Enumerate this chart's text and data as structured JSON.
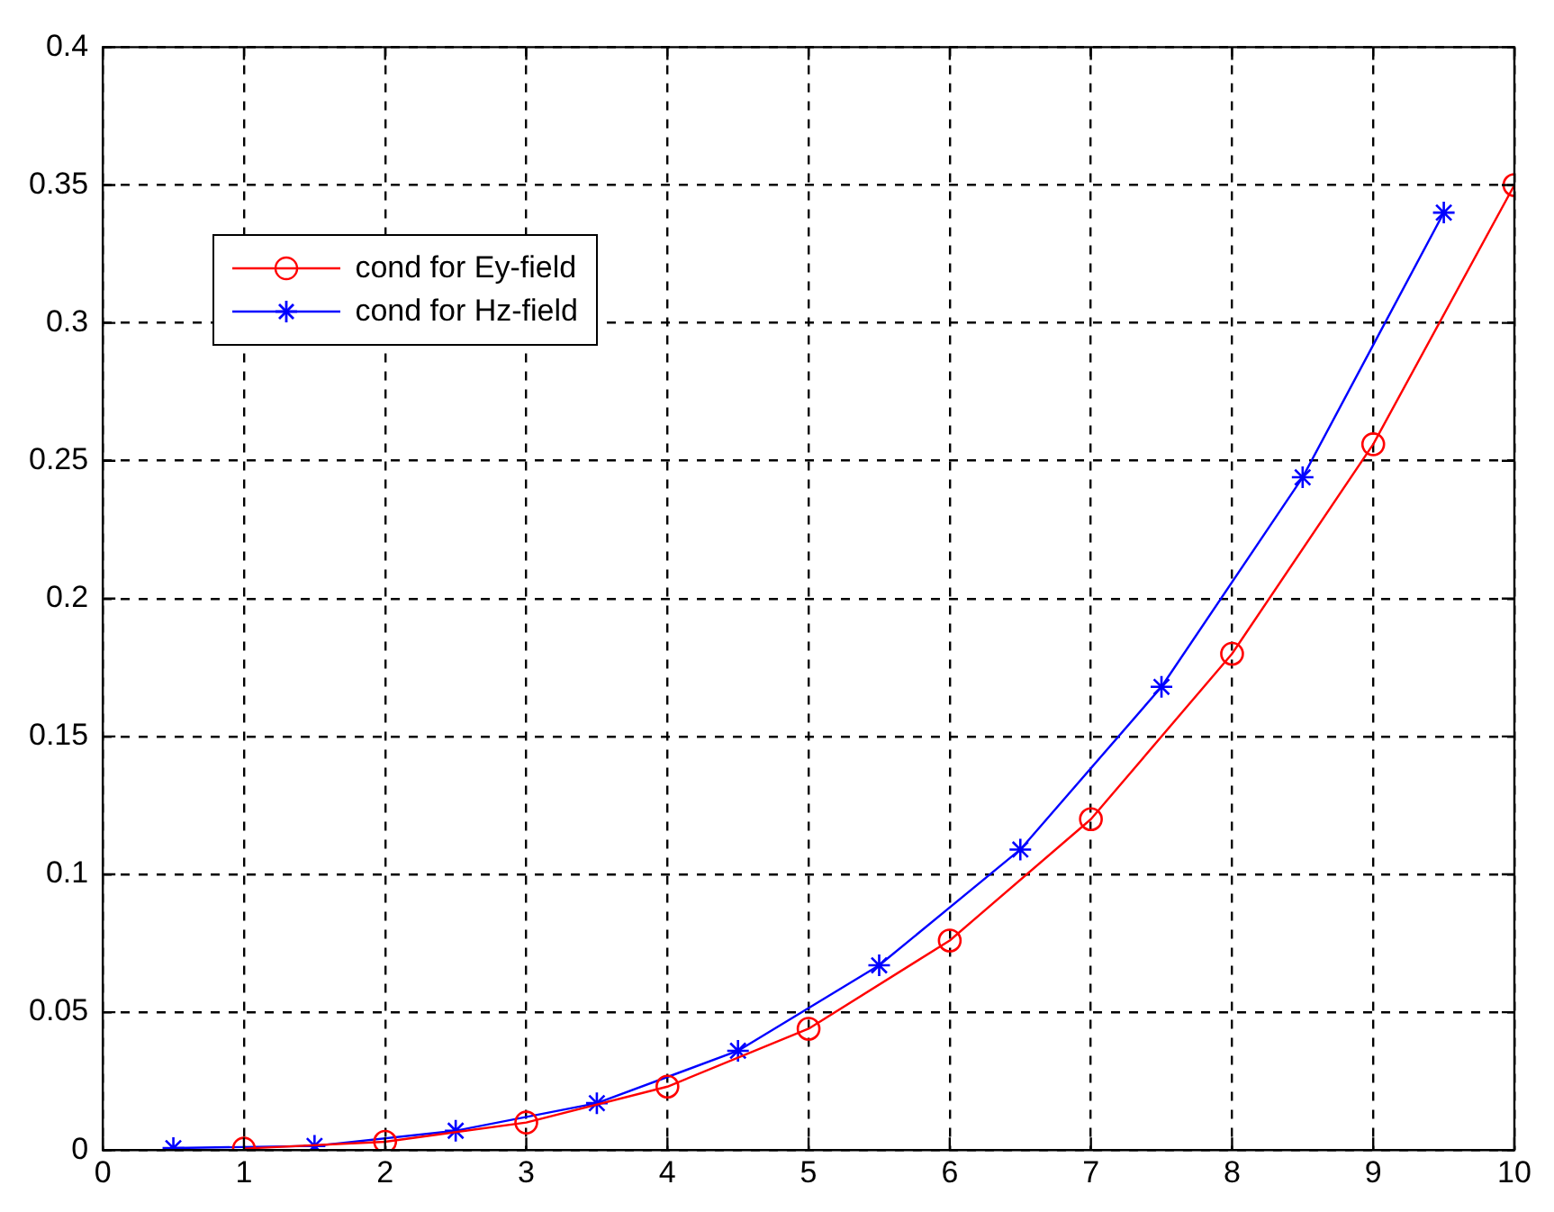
{
  "chart_data": {
    "type": "line",
    "xlim": [
      0,
      10
    ],
    "ylim": [
      0,
      0.4
    ],
    "xticks": [
      0,
      1,
      2,
      3,
      4,
      5,
      6,
      7,
      8,
      9,
      10
    ],
    "yticks": [
      0,
      0.05,
      0.1,
      0.15,
      0.2,
      0.25,
      0.3,
      0.35,
      0.4
    ],
    "grid": true,
    "legend": "top left",
    "line_style": "solid",
    "series": [
      {
        "name": "cond for Ey-field",
        "color": "#ff0000",
        "marker": "circle",
        "x": [
          1,
          2,
          3,
          4,
          5,
          6,
          7,
          8,
          9,
          10
        ],
        "values": [
          0.0005,
          0.003,
          0.01,
          0.023,
          0.044,
          0.076,
          0.12,
          0.18,
          0.256,
          0.35
        ]
      },
      {
        "name": "cond for Hz-field",
        "color": "#0000ff",
        "marker": "cross",
        "x": [
          0.5,
          1.5,
          2.5,
          3.5,
          4.5,
          5.5,
          6.5,
          7.5,
          8.5,
          9.5
        ],
        "values": [
          0.0007,
          0.0015,
          0.007,
          0.017,
          0.036,
          0.067,
          0.109,
          0.168,
          0.244,
          0.34
        ]
      }
    ]
  }
}
